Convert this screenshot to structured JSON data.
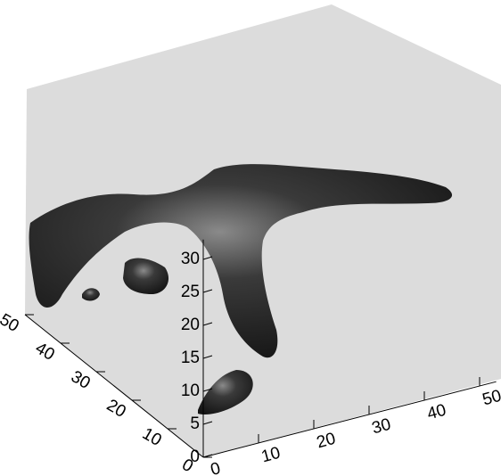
{
  "chart_data": {
    "type": "isosurface",
    "xlim": [
      0,
      53
    ],
    "xticks": [
      0,
      10,
      20,
      30,
      40,
      50
    ],
    "ylim": [
      0,
      50
    ],
    "yticks": [
      0,
      10,
      20,
      30,
      40,
      50
    ],
    "zlim": [
      0,
      33
    ],
    "zticks": [
      0,
      5,
      10,
      15,
      20,
      25,
      30
    ]
  }
}
